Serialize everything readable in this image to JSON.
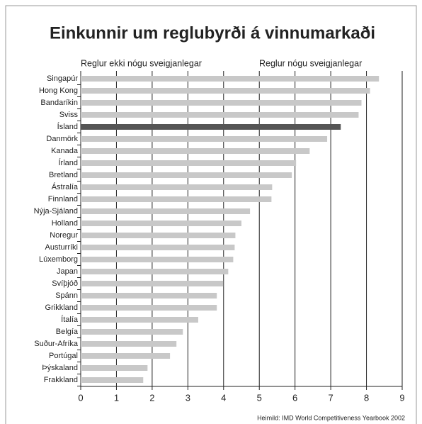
{
  "chart_data": {
    "type": "barh",
    "title": "Einkunnir um reglubyrði á vinnumarkaði",
    "annotations": [
      "Reglur ekki nógu sveigjanlegar",
      "Reglur nógu sveigjanlegar"
    ],
    "source": "Heimild: IMD World Competitiveness Yearbook 2002",
    "categories": [
      "Singapúr",
      "Hong Kong",
      "Bandaríkin",
      "Sviss",
      "Ísland",
      "Danmörk",
      "Kanada",
      "Írland",
      "Bretland",
      "Ástralía",
      "Finnland",
      "Nýja-Sjáland",
      "Holland",
      "Noregur",
      "Austurríki",
      "Lúxemborg",
      "Japan",
      "Svíþjóð",
      "Spánn",
      "Grikkland",
      "Ítalía",
      "Belgía",
      "Suður-Afríka",
      "Portúgal",
      "Þýskaland",
      "Frakkland"
    ],
    "values": [
      8.35,
      8.1,
      7.86,
      7.78,
      7.28,
      6.9,
      6.41,
      6.03,
      5.91,
      5.36,
      5.34,
      4.74,
      4.5,
      4.33,
      4.31,
      4.27,
      4.13,
      3.99,
      3.81,
      3.81,
      3.29,
      2.86,
      2.68,
      2.5,
      1.87,
      1.75
    ],
    "color": "#c8c8c8",
    "highlight": "Ísland",
    "highlight_color": "#555555",
    "xlim": [
      0,
      9
    ],
    "xticks": [
      0,
      1,
      2,
      3,
      4,
      5,
      6,
      7,
      8,
      9
    ],
    "grid": true
  }
}
